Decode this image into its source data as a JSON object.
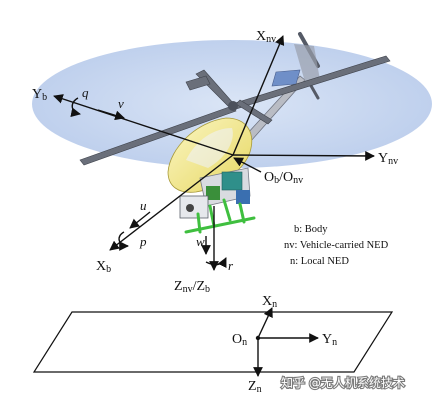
{
  "axes": {
    "X_nv": {
      "main": "X",
      "sub": "nv"
    },
    "Y_b": {
      "main": "Y",
      "sub": "b"
    },
    "Y_nv": {
      "main": "Y",
      "sub": "nv"
    },
    "O_b_O_nv": {
      "main1": "O",
      "sub1": "b",
      "sep": "/O",
      "sub2": "nv"
    },
    "X_b": {
      "main": "X",
      "sub": "b"
    },
    "Z_nv_Z_b": {
      "main1": "Z",
      "sub1": "nv",
      "sep": "/Z",
      "sub2": "b"
    },
    "X_n": {
      "main": "X",
      "sub": "n"
    },
    "Y_n": {
      "main": "Y",
      "sub": "n"
    },
    "O_n": {
      "main": "O",
      "sub": "n"
    },
    "Z_n": {
      "main": "Z",
      "sub": "n"
    }
  },
  "rates": {
    "q": "q",
    "v": "v",
    "u": "u",
    "p": "p",
    "w": "w",
    "r": "r"
  },
  "legend": [
    "b: Body",
    "nv: Vehicle-carried NED",
    "n: Local NED"
  ],
  "watermark": "知乎 @无人机系统技术",
  "colors": {
    "rotor_disk": "#c7d7ef",
    "canopy": "#f1e58a",
    "frame_green": "#3fbf3f",
    "battery_teal": "#2f8f8a"
  }
}
